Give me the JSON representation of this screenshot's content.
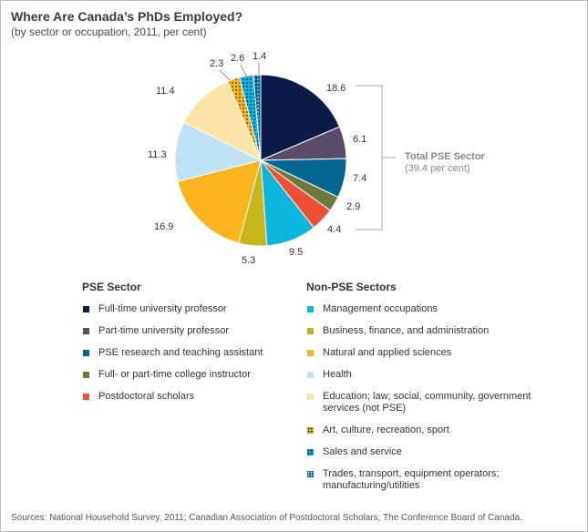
{
  "title": "Where Are Canada’s PhDs Employed?",
  "subtitle": "(by sector or occupation, 2011, per cent)",
  "source": "Sources: National Household Survey, 2011; Canadian Association of Postdoctoral Scholars; The Conference Board of Canada.",
  "brace": {
    "label_line1": "Total PSE Sector",
    "label_line2": "(39.4 per cent)"
  },
  "legend": {
    "pse_title": "PSE Sector",
    "non_pse_title": "Non-PSE Sectors"
  },
  "chart_data": {
    "type": "pie",
    "start_angle_deg": 0,
    "direction": "clockwise",
    "slices": [
      {
        "label": "Full-time university professor",
        "value": 18.6,
        "group": "pse",
        "color": "#0c1a4a",
        "pattern": "none"
      },
      {
        "label": "Part-time university professor",
        "value": 6.1,
        "group": "pse",
        "color": "#5b4b6b",
        "pattern": "none"
      },
      {
        "label": "PSE research and teaching assistant",
        "value": 7.4,
        "group": "pse",
        "color": "#046791",
        "pattern": "none"
      },
      {
        "label": "Full- or part-time college instructor",
        "value": 2.9,
        "group": "pse",
        "color": "#6f7a3a",
        "pattern": "none"
      },
      {
        "label": "Postdoctoral scholars",
        "value": 4.4,
        "group": "pse",
        "color": "#ef5035",
        "pattern": "none"
      },
      {
        "label": "Management occupations",
        "value": 9.5,
        "group": "non_pse",
        "color": "#0bb5db",
        "pattern": "none"
      },
      {
        "label": "Business, finance, and administration",
        "value": 5.3,
        "group": "non_pse",
        "color": "#c4b61b",
        "pattern": "none"
      },
      {
        "label": "Natural and applied sciences",
        "value": 16.9,
        "group": "non_pse",
        "color": "#fbb41e",
        "pattern": "none"
      },
      {
        "label": "Health",
        "value": 11.3,
        "group": "non_pse",
        "color": "#bfe3f4",
        "pattern": "none"
      },
      {
        "label": "Education; law; social, community, government services (not PSE)",
        "value": 11.4,
        "group": "non_pse",
        "color": "#fde3a5",
        "pattern": "none"
      },
      {
        "label": "Art, culture, recreation, sport",
        "value": 2.3,
        "group": "non_pse",
        "color": "#fbb41e",
        "pattern": "dots"
      },
      {
        "label": "Sales and service",
        "value": 2.6,
        "group": "non_pse",
        "color": "#0bb5db",
        "pattern": "dots"
      },
      {
        "label": "Trades, transport, equipment operators; manufacturing/utilities",
        "value": 1.4,
        "group": "non_pse",
        "color": "#046791",
        "pattern": "dots"
      }
    ]
  }
}
